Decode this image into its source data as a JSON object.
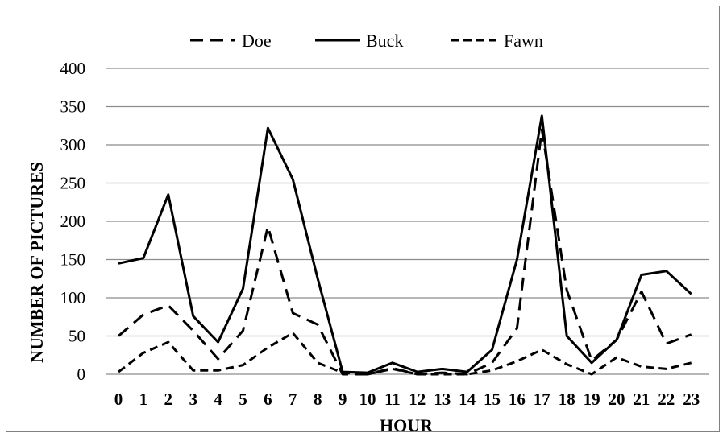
{
  "chart_data": {
    "type": "line",
    "xlabel": "HOUR",
    "ylabel": "NUMBER OF PICTURES",
    "ylim": [
      0,
      400
    ],
    "yticks": [
      0,
      50,
      100,
      150,
      200,
      250,
      300,
      350,
      400
    ],
    "categories": [
      "0",
      "1",
      "2",
      "3",
      "4",
      "5",
      "6",
      "7",
      "8",
      "9",
      "10",
      "11",
      "12",
      "13",
      "14",
      "15",
      "16",
      "17",
      "18",
      "19",
      "20",
      "21",
      "22",
      "23"
    ],
    "grid": "horizontal",
    "legend_position": "top",
    "series": [
      {
        "name": "Doe",
        "style": "long-dash",
        "color": "#000000",
        "values": [
          50,
          78,
          90,
          57,
          20,
          57,
          193,
          80,
          65,
          0,
          0,
          8,
          0,
          2,
          0,
          15,
          60,
          320,
          110,
          18,
          45,
          108,
          40,
          52
        ]
      },
      {
        "name": "Buck",
        "style": "solid",
        "color": "#000000",
        "values": [
          145,
          152,
          235,
          76,
          42,
          112,
          322,
          255,
          125,
          3,
          2,
          15,
          3,
          7,
          3,
          32,
          150,
          338,
          50,
          15,
          45,
          130,
          135,
          105
        ]
      },
      {
        "name": "Fawn",
        "style": "short-dash",
        "color": "#000000",
        "values": [
          3,
          28,
          42,
          5,
          5,
          12,
          35,
          54,
          15,
          2,
          0,
          7,
          0,
          0,
          0,
          5,
          17,
          32,
          13,
          0,
          22,
          10,
          7,
          15
        ]
      }
    ]
  }
}
